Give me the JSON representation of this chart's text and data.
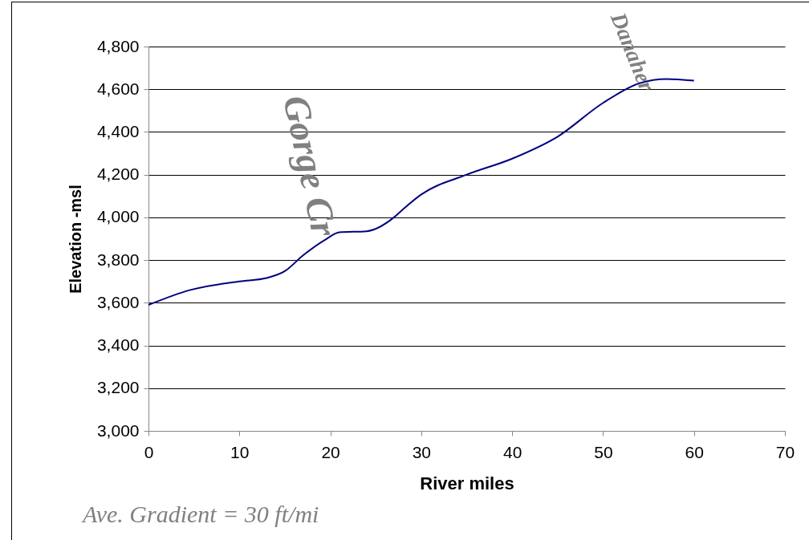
{
  "chart_data": {
    "type": "line",
    "xlabel": "River miles",
    "ylabel": "Elevation -msl",
    "x": [
      0,
      4.6,
      10,
      13,
      15,
      17,
      19.5,
      21,
      24,
      27,
      28,
      30,
      35,
      40,
      45,
      50,
      54,
      57,
      60
    ],
    "series": [
      {
        "color": "#000080",
        "values": [
          3590,
          3660,
          3700,
          3716,
          3748,
          3822,
          3897,
          3930,
          3935,
          4000,
          4038,
          4107,
          4200,
          4275,
          4378,
          4536,
          4628,
          4648,
          4640
        ]
      }
    ],
    "xlim": [
      0,
      70
    ],
    "xticks": [
      0,
      10,
      20,
      30,
      40,
      50,
      60,
      70
    ],
    "ylim": [
      3000,
      4800
    ],
    "yticks": [
      {
        "value": 3000,
        "label": "3,000"
      },
      {
        "value": 3200,
        "label": "3,200"
      },
      {
        "value": 3400,
        "label": "3,400"
      },
      {
        "value": 3600,
        "label": "3,600"
      },
      {
        "value": 3800,
        "label": "3,800"
      },
      {
        "value": 4000,
        "label": "4,000"
      },
      {
        "value": 4200,
        "label": "4,200"
      },
      {
        "value": 4400,
        "label": "4,400"
      },
      {
        "value": 4600,
        "label": "4,600"
      },
      {
        "value": 4800,
        "label": "4,800"
      }
    ],
    "grid": "y",
    "marker": "none",
    "annotations": [
      {
        "text": "Gorge Cr",
        "x": 20,
        "y": 3920
      },
      {
        "text": "Danaher",
        "x": 57,
        "y": 4648
      },
      "Ave. Gradient = 30 ft/mi"
    ]
  }
}
